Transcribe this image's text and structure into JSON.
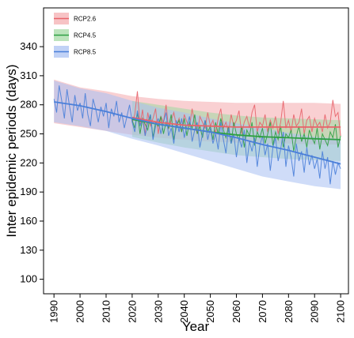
{
  "chart_data": {
    "type": "line",
    "title": "",
    "xlabel": "Year",
    "ylabel": "Inter epidemic periods (days)",
    "xlim": [
      1986,
      2103
    ],
    "ylim": [
      85,
      380
    ],
    "xticks": [
      1990,
      2000,
      2010,
      2020,
      2030,
      2040,
      2050,
      2060,
      2070,
      2080,
      2090,
      2100
    ],
    "yticks": [
      100,
      130,
      160,
      190,
      220,
      250,
      280,
      310,
      340
    ],
    "grid": false,
    "legend_position": "top-left",
    "series": [
      {
        "name": "RCP2.6",
        "color": "#e8636a",
        "band_color": "#f4a9ad",
        "band": {
          "x": [
            1990,
            2000,
            2010,
            2020,
            2030,
            2040,
            2050,
            2060,
            2070,
            2080,
            2090,
            2100
          ],
          "upper": [
            306,
            298,
            294,
            289,
            286,
            284,
            283,
            282,
            282,
            282,
            282,
            281
          ],
          "lower": [
            261,
            257,
            253,
            249,
            246,
            244,
            242,
            241,
            240,
            240,
            239,
            239
          ]
        },
        "trend": {
          "x": [
            2020,
            2030,
            2040,
            2050,
            2060,
            2070,
            2080,
            2090,
            2100
          ],
          "y": [
            267,
            262,
            259,
            258,
            257,
            257,
            257,
            257,
            257
          ]
        },
        "annual": {
          "x": [
            2020,
            2021,
            2022,
            2023,
            2024,
            2025,
            2026,
            2027,
            2028,
            2029,
            2030,
            2031,
            2032,
            2033,
            2034,
            2035,
            2036,
            2037,
            2038,
            2039,
            2040,
            2041,
            2042,
            2043,
            2044,
            2045,
            2046,
            2047,
            2048,
            2049,
            2050,
            2051,
            2052,
            2053,
            2054,
            2055,
            2056,
            2057,
            2058,
            2059,
            2060,
            2061,
            2062,
            2063,
            2064,
            2065,
            2066,
            2067,
            2068,
            2069,
            2070,
            2071,
            2072,
            2073,
            2074,
            2075,
            2076,
            2077,
            2078,
            2079,
            2080,
            2081,
            2082,
            2083,
            2084,
            2085,
            2086,
            2087,
            2088,
            2089,
            2090,
            2091,
            2092,
            2093,
            2094,
            2095,
            2096,
            2097,
            2098,
            2099,
            2100
          ],
          "y": [
            262,
            270,
            294,
            260,
            275,
            248,
            272,
            258,
            266,
            276,
            250,
            268,
            262,
            280,
            255,
            264,
            272,
            258,
            266,
            252,
            270,
            262,
            258,
            276,
            260,
            250,
            268,
            262,
            256,
            272,
            258,
            264,
            250,
            266,
            276,
            256,
            262,
            252,
            270,
            258,
            264,
            274,
            250,
            262,
            268,
            256,
            272,
            280,
            252,
            262,
            258,
            270,
            252,
            264,
            256,
            268,
            250,
            262,
            284,
            256,
            264,
            252,
            270,
            258,
            262,
            276,
            250,
            264,
            268,
            252,
            266,
            258,
            262,
            252,
            270,
            256,
            262,
            285,
            268,
            272,
            248
          ]
        }
      },
      {
        "name": "RCP4.5",
        "color": "#2ea043",
        "band_color": "#9fd8a0",
        "band": {
          "x": [
            2020,
            2030,
            2040,
            2050,
            2060,
            2070,
            2080,
            2090,
            2100
          ],
          "upper": [
            284,
            280,
            276,
            272,
            269,
            267,
            266,
            265,
            264
          ],
          "lower": [
            247,
            241,
            236,
            232,
            228,
            226,
            224,
            223,
            222
          ]
        },
        "trend": {
          "x": [
            2020,
            2030,
            2040,
            2050,
            2060,
            2070,
            2080,
            2090,
            2100
          ],
          "y": [
            265,
            260,
            256,
            252,
            249,
            247,
            246,
            245,
            244
          ]
        },
        "annual": {
          "x": [
            2020,
            2021,
            2022,
            2023,
            2024,
            2025,
            2026,
            2027,
            2028,
            2029,
            2030,
            2031,
            2032,
            2033,
            2034,
            2035,
            2036,
            2037,
            2038,
            2039,
            2040,
            2041,
            2042,
            2043,
            2044,
            2045,
            2046,
            2047,
            2048,
            2049,
            2050,
            2051,
            2052,
            2053,
            2054,
            2055,
            2056,
            2057,
            2058,
            2059,
            2060,
            2061,
            2062,
            2063,
            2064,
            2065,
            2066,
            2067,
            2068,
            2069,
            2070,
            2071,
            2072,
            2073,
            2074,
            2075,
            2076,
            2077,
            2078,
            2079,
            2080,
            2081,
            2082,
            2083,
            2084,
            2085,
            2086,
            2087,
            2088,
            2089,
            2090,
            2091,
            2092,
            2093,
            2094,
            2095,
            2096,
            2097,
            2098,
            2099,
            2100
          ],
          "y": [
            264,
            256,
            272,
            250,
            266,
            260,
            254,
            270,
            246,
            262,
            258,
            268,
            250,
            262,
            256,
            270,
            244,
            258,
            264,
            252,
            266,
            248,
            262,
            256,
            270,
            250,
            258,
            246,
            264,
            252,
            258,
            244,
            262,
            250,
            266,
            254,
            246,
            258,
            240,
            262,
            250,
            244,
            258,
            236,
            254,
            248,
            262,
            238,
            252,
            246,
            256,
            240,
            250,
            262,
            238,
            252,
            244,
            258,
            236,
            250,
            246,
            254,
            232,
            248,
            258,
            242,
            250,
            236,
            254,
            246,
            240,
            256,
            234,
            250,
            244,
            238,
            252,
            246,
            260,
            236,
            248
          ]
        }
      },
      {
        "name": "RCP8.5",
        "color": "#4a7fd9",
        "band_color": "#a7bff2",
        "band": {
          "x": [
            1990,
            2000,
            2010,
            2020,
            2030,
            2040,
            2050,
            2060,
            2070,
            2080,
            2090,
            2100
          ],
          "upper": [
            305,
            297,
            292,
            284,
            277,
            272,
            266,
            261,
            256,
            251,
            247,
            245
          ],
          "lower": [
            262,
            258,
            253,
            245,
            238,
            230,
            222,
            214,
            206,
            201,
            196,
            193
          ]
        },
        "trend": {
          "x": [
            1990,
            2000,
            2010,
            2020,
            2030,
            2040,
            2050,
            2060,
            2070,
            2080,
            2090,
            2100
          ],
          "y": [
            283,
            279,
            273,
            266,
            260,
            256,
            252,
            246,
            239,
            233,
            226,
            219
          ]
        },
        "annual": {
          "x": [
            1990,
            1991,
            1992,
            1993,
            1994,
            1995,
            1996,
            1997,
            1998,
            1999,
            2000,
            2001,
            2002,
            2003,
            2004,
            2005,
            2006,
            2007,
            2008,
            2009,
            2010,
            2011,
            2012,
            2013,
            2014,
            2015,
            2016,
            2017,
            2018,
            2019,
            2020,
            2021,
            2022,
            2023,
            2024,
            2025,
            2026,
            2027,
            2028,
            2029,
            2030,
            2031,
            2032,
            2033,
            2034,
            2035,
            2036,
            2037,
            2038,
            2039,
            2040,
            2041,
            2042,
            2043,
            2044,
            2045,
            2046,
            2047,
            2048,
            2049,
            2050,
            2051,
            2052,
            2053,
            2054,
            2055,
            2056,
            2057,
            2058,
            2059,
            2060,
            2061,
            2062,
            2063,
            2064,
            2065,
            2066,
            2067,
            2068,
            2069,
            2070,
            2071,
            2072,
            2073,
            2074,
            2075,
            2076,
            2077,
            2078,
            2079,
            2080,
            2081,
            2082,
            2083,
            2084,
            2085,
            2086,
            2087,
            2088,
            2089,
            2090,
            2091,
            2092,
            2093,
            2094,
            2095,
            2096,
            2097,
            2098,
            2099,
            2100
          ],
          "y": [
            286,
            272,
            300,
            284,
            266,
            296,
            278,
            262,
            290,
            274,
            282,
            266,
            292,
            270,
            258,
            286,
            276,
            262,
            278,
            268,
            282,
            256,
            276,
            268,
            284,
            262,
            272,
            256,
            268,
            280,
            262,
            252,
            274,
            258,
            266,
            248,
            262,
            270,
            244,
            258,
            266,
            250,
            262,
            272,
            248,
            256,
            240,
            264,
            252,
            266,
            246,
            258,
            268,
            242,
            254,
            262,
            236,
            250,
            264,
            244,
            256,
            240,
            250,
            234,
            262,
            244,
            230,
            256,
            240,
            250,
            226,
            246,
            236,
            254,
            220,
            242,
            232,
            246,
            216,
            238,
            248,
            228,
            240,
            212,
            236,
            246,
            222,
            234,
            252,
            216,
            238,
            226,
            206,
            240,
            222,
            232,
            210,
            236,
            218,
            228,
            214,
            224,
            204,
            232,
            214,
            226,
            198,
            222,
            208,
            220,
            214
          ]
        }
      }
    ]
  }
}
